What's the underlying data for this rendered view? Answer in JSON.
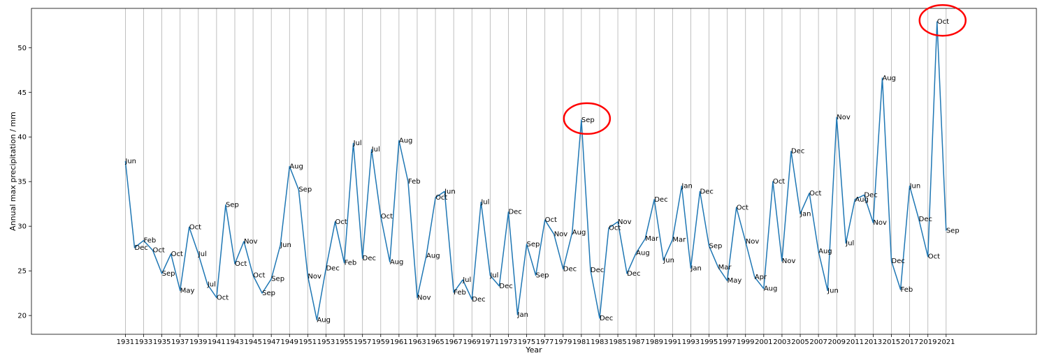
{
  "chart_data": {
    "type": "line",
    "title": "",
    "xlabel": "Year",
    "ylabel": "Annual max precipitation / mm",
    "xlim": [
      1920.7,
      2030.9
    ],
    "ylim": [
      17.9,
      54.4
    ],
    "grid": "vertical",
    "x_ticks": [
      1931,
      1933,
      1935,
      1937,
      1939,
      1941,
      1943,
      1945,
      1947,
      1949,
      1951,
      1953,
      1955,
      1957,
      1959,
      1961,
      1963,
      1965,
      1967,
      1969,
      1971,
      1973,
      1975,
      1977,
      1979,
      1981,
      1983,
      1985,
      1987,
      1989,
      1991,
      1993,
      1995,
      1997,
      1999,
      2001,
      2003,
      2005,
      2007,
      2009,
      2011,
      2013,
      2015,
      2017,
      2019,
      2021
    ],
    "y_ticks": [
      20,
      25,
      30,
      35,
      40,
      45,
      50
    ],
    "line_color": "#1f77b4",
    "annotation_color": "#ff0000",
    "series": [
      {
        "x": [
          1931,
          1932,
          1933,
          1934,
          1935,
          1936,
          1937,
          1938,
          1939,
          1940,
          1941,
          1942,
          1943,
          1944,
          1945,
          1946,
          1947,
          1948,
          1949,
          1950,
          1951,
          1952,
          1953,
          1954,
          1955,
          1956,
          1957,
          1958,
          1959,
          1960,
          1961,
          1962,
          1963,
          1964,
          1965,
          1966,
          1967,
          1968,
          1969,
          1970,
          1971,
          1972,
          1973,
          1974,
          1975,
          1976,
          1977,
          1978,
          1979,
          1980,
          1981,
          1982,
          1983,
          1984,
          1985,
          1986,
          1987,
          1988,
          1989,
          1990,
          1991,
          1992,
          1993,
          1994,
          1995,
          1996,
          1997,
          1998,
          1999,
          2000,
          2001,
          2002,
          2003,
          2004,
          2005,
          2006,
          2007,
          2008,
          2009,
          2010,
          2011,
          2012,
          2013,
          2014,
          2015,
          2016,
          2017,
          2018,
          2019,
          2020,
          2021
        ],
        "y": [
          37.3,
          27.6,
          28.4,
          27.3,
          24.7,
          26.9,
          22.8,
          29.9,
          26.9,
          23.5,
          22.0,
          32.4,
          25.8,
          28.3,
          24.5,
          22.5,
          24.1,
          27.9,
          36.7,
          34.1,
          24.4,
          19.5,
          25.3,
          30.5,
          25.9,
          39.3,
          26.4,
          38.6,
          31.1,
          26.0,
          39.6,
          35.0,
          22.0,
          26.7,
          33.2,
          33.9,
          22.6,
          24.0,
          21.8,
          32.7,
          24.5,
          23.3,
          31.6,
          20.1,
          28.0,
          24.5,
          30.7,
          29.1,
          25.2,
          29.3,
          41.9,
          25.1,
          19.7,
          29.8,
          30.5,
          24.7,
          27.0,
          28.6,
          33.0,
          26.2,
          28.5,
          34.5,
          25.3,
          33.9,
          27.8,
          25.4,
          23.9,
          32.1,
          28.3,
          24.3,
          23.0,
          35.0,
          26.1,
          38.4,
          31.4,
          33.7,
          27.2,
          22.8,
          42.2,
          28.1,
          33.0,
          33.5,
          30.4,
          46.6,
          26.1,
          22.9,
          34.5,
          30.8,
          26.6,
          52.9,
          29.5
        ],
        "labels": [
          "Jun",
          "Dec",
          "Feb",
          "Oct",
          "Sep",
          "Oct",
          "May",
          "Oct",
          "Jul",
          "Jul",
          "Oct",
          "Sep",
          "Oct",
          "Nov",
          "Oct",
          "Sep",
          "Sep",
          "Jun",
          "Aug",
          "Sep",
          "Nov",
          "Aug",
          "Dec",
          "Oct",
          "Feb",
          "Jul",
          "Dec",
          "Jul",
          "Oct",
          "Aug",
          "Aug",
          "Feb",
          "Nov",
          "Aug",
          "Oct",
          "Jun",
          "Feb",
          "Jul",
          "Dec",
          "Jul",
          "Jul",
          "Dec",
          "Dec",
          "Jan",
          "Sep",
          "Sep",
          "Oct",
          "Nov",
          "Dec",
          "Aug",
          "Sep",
          "Dec",
          "Dec",
          "Oct",
          "Nov",
          "Dec",
          "Aug",
          "Mar",
          "Dec",
          "Jun",
          "Mar",
          "Jan",
          "Jan",
          "Dec",
          "Sep",
          "Mar",
          "May",
          "Oct",
          "Nov",
          "Apr",
          "Aug",
          "Oct",
          "Nov",
          "Dec",
          "Jan",
          "Oct",
          "Aug",
          "Jun",
          "Nov",
          "Jul",
          "Aug",
          "Dec",
          "Nov",
          "Aug",
          "Dec",
          "Feb",
          "Jun",
          "Dec",
          "Oct",
          "Oct",
          "Sep"
        ]
      }
    ],
    "highlighted": [
      1981,
      2020
    ]
  }
}
